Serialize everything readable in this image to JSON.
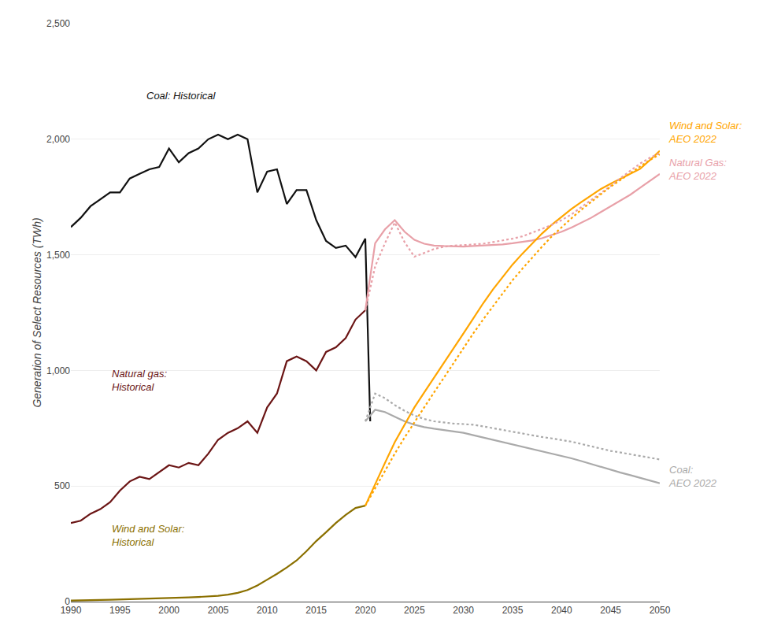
{
  "chart_data": {
    "type": "line",
    "y_label": "Generation of Select Resources (TWh)",
    "xlim": [
      1990,
      2050
    ],
    "ylim": [
      0,
      2500
    ],
    "xticks": [
      1990,
      1995,
      2000,
      2005,
      2010,
      2015,
      2020,
      2025,
      2030,
      2035,
      2040,
      2045,
      2050
    ],
    "yticks": [
      0,
      500,
      {
        "value": 1000,
        "label": "1,000"
      },
      {
        "value": 1500,
        "label": "1,500"
      },
      {
        "value": 2000,
        "label": "2,000"
      },
      {
        "value": 2500,
        "label": "2,500"
      }
    ],
    "grid": "y",
    "series": [
      {
        "color": "#111111",
        "line_style": "solid",
        "x": [
          1990,
          1991,
          1992,
          1993,
          1994,
          1995,
          1996,
          1997,
          1998,
          1999,
          2000,
          2001,
          2002,
          2003,
          2004,
          2005,
          2006,
          2007,
          2008,
          2009,
          2010,
          2011,
          2012,
          2013,
          2014,
          2015,
          2016,
          2017,
          2018,
          2019,
          2020,
          2020.5
        ],
        "values": [
          1620,
          1660,
          1710,
          1740,
          1770,
          1770,
          1830,
          1850,
          1870,
          1880,
          1960,
          1900,
          1940,
          1960,
          2000,
          2020,
          2000,
          2020,
          2000,
          1770,
          1860,
          1870,
          1720,
          1780,
          1780,
          1650,
          1560,
          1530,
          1540,
          1490,
          1570,
          780
        ]
      },
      {
        "color": "#6b1515",
        "line_style": "solid",
        "x": [
          1990,
          1991,
          1992,
          1993,
          1994,
          1995,
          1996,
          1997,
          1998,
          1999,
          2000,
          2001,
          2002,
          2003,
          2004,
          2005,
          2006,
          2007,
          2008,
          2009,
          2010,
          2011,
          2012,
          2013,
          2014,
          2015,
          2016,
          2017,
          2018,
          2019,
          2020
        ],
        "values": [
          340,
          350,
          380,
          400,
          430,
          480,
          520,
          540,
          530,
          560,
          590,
          580,
          600,
          590,
          640,
          700,
          730,
          750,
          780,
          730,
          840,
          900,
          1040,
          1060,
          1040,
          1000,
          1080,
          1100,
          1140,
          1220,
          1260
        ]
      },
      {
        "color": "#8b7000",
        "line_style": "solid",
        "x": [
          1990,
          1991,
          1992,
          1993,
          1994,
          1995,
          1996,
          1997,
          1998,
          1999,
          2000,
          2001,
          2002,
          2003,
          2004,
          2005,
          2006,
          2007,
          2008,
          2009,
          2010,
          2011,
          2012,
          2013,
          2014,
          2015,
          2016,
          2017,
          2018,
          2019,
          2020
        ],
        "values": [
          5,
          5,
          6,
          7,
          8,
          9,
          10,
          11,
          12,
          14,
          16,
          17,
          18,
          20,
          22,
          25,
          30,
          38,
          50,
          70,
          95,
          120,
          148,
          178,
          218,
          262,
          300,
          340,
          375,
          405,
          415
        ]
      },
      {
        "color": "#aaaaaa",
        "line_style": "solid",
        "x": [
          2020,
          2021,
          2022,
          2023,
          2024,
          2025,
          2026,
          2027,
          2028,
          2029,
          2030,
          2031,
          2032,
          2033,
          2034,
          2035,
          2036,
          2037,
          2038,
          2039,
          2040,
          2041,
          2042,
          2043,
          2044,
          2045,
          2046,
          2047,
          2048,
          2049,
          2050
        ],
        "values": [
          780,
          830,
          820,
          800,
          780,
          765,
          755,
          748,
          742,
          736,
          730,
          720,
          710,
          700,
          690,
          682,
          672,
          662,
          652,
          642,
          632,
          620,
          608,
          595,
          582,
          570,
          558,
          547,
          536,
          524,
          512
        ]
      },
      {
        "color": "#e8a0a8",
        "line_style": "solid",
        "x": [
          2020,
          2021,
          2022,
          2023,
          2024,
          2025,
          2026,
          2027,
          2028,
          2029,
          2030,
          2031,
          2032,
          2033,
          2034,
          2035,
          2036,
          2037,
          2038,
          2039,
          2040,
          2041,
          2042,
          2043,
          2044,
          2045,
          2046,
          2047,
          2048,
          2049,
          2050
        ],
        "values": [
          1260,
          1550,
          1610,
          1650,
          1600,
          1565,
          1548,
          1540,
          1538,
          1536,
          1536,
          1538,
          1540,
          1542,
          1545,
          1550,
          1555,
          1562,
          1572,
          1585,
          1600,
          1618,
          1640,
          1660,
          1685,
          1710,
          1735,
          1760,
          1790,
          1820,
          1850
        ]
      },
      {
        "color": "#ffa500",
        "line_style": "solid",
        "x": [
          2020,
          2021,
          2022,
          2023,
          2024,
          2025,
          2026,
          2027,
          2028,
          2029,
          2030,
          2031,
          2032,
          2033,
          2034,
          2035,
          2036,
          2037,
          2038,
          2039,
          2040,
          2041,
          2042,
          2043,
          2044,
          2045,
          2046,
          2047,
          2048,
          2049,
          2050
        ],
        "values": [
          415,
          510,
          600,
          690,
          765,
          840,
          905,
          968,
          1030,
          1095,
          1160,
          1225,
          1290,
          1350,
          1405,
          1458,
          1505,
          1550,
          1592,
          1630,
          1665,
          1698,
          1728,
          1758,
          1785,
          1808,
          1830,
          1852,
          1872,
          1910,
          1950
        ]
      },
      {
        "color": "#aaaaaa",
        "line_style": "dotted",
        "x": [
          2020,
          2021,
          2022,
          2023,
          2024,
          2025,
          2026,
          2027,
          2028,
          2029,
          2030,
          2031,
          2032,
          2033,
          2034,
          2035,
          2036,
          2037,
          2038,
          2039,
          2040,
          2041,
          2042,
          2043,
          2044,
          2045,
          2046,
          2047,
          2048,
          2049,
          2050
        ],
        "values": [
          780,
          900,
          880,
          850,
          825,
          805,
          790,
          780,
          775,
          770,
          768,
          765,
          758,
          750,
          742,
          735,
          728,
          720,
          712,
          706,
          700,
          692,
          682,
          672,
          662,
          652,
          645,
          638,
          630,
          622,
          615
        ]
      },
      {
        "color": "#e8a0a8",
        "line_style": "dotted",
        "x": [
          2020,
          2021,
          2022,
          2023,
          2024,
          2025,
          2026,
          2027,
          2028,
          2029,
          2030,
          2031,
          2032,
          2033,
          2034,
          2035,
          2036,
          2037,
          2038,
          2039,
          2040,
          2041,
          2042,
          2043,
          2044,
          2045,
          2046,
          2047,
          2048,
          2049,
          2050
        ],
        "values": [
          1260,
          1450,
          1550,
          1640,
          1555,
          1492,
          1508,
          1525,
          1535,
          1540,
          1542,
          1545,
          1548,
          1555,
          1562,
          1570,
          1580,
          1595,
          1612,
          1630,
          1650,
          1675,
          1705,
          1735,
          1765,
          1798,
          1832,
          1865,
          1895,
          1920,
          1940
        ]
      },
      {
        "color": "#ffa500",
        "line_style": "dotted",
        "x": [
          2020,
          2021,
          2022,
          2023,
          2024,
          2025,
          2026,
          2027,
          2028,
          2029,
          2030,
          2031,
          2032,
          2033,
          2034,
          2035,
          2036,
          2037,
          2038,
          2039,
          2040,
          2041,
          2042,
          2043,
          2044,
          2045,
          2046,
          2047,
          2048,
          2049,
          2050
        ],
        "values": [
          415,
          488,
          565,
          640,
          710,
          775,
          842,
          905,
          968,
          1032,
          1098,
          1160,
          1220,
          1278,
          1335,
          1390,
          1440,
          1488,
          1535,
          1580,
          1620,
          1658,
          1695,
          1730,
          1762,
          1795,
          1825,
          1855,
          1882,
          1910,
          1935
        ]
      }
    ],
    "annotations": [
      {
        "text": "Coal: Historical",
        "color": "#111111"
      },
      {
        "text": "Natural gas:\nHistorical",
        "color": "#6b1515"
      },
      {
        "text": "Wind and Solar:\nHistorical",
        "color": "#8b7000"
      },
      {
        "text": "Wind and Solar:\nAEO 2022",
        "color": "#ffa500"
      },
      {
        "text": "Natural Gas:\nAEO 2022",
        "color": "#e8a0a8"
      },
      {
        "text": "Coal:\nAEO 2022",
        "color": "#aaaaaa"
      }
    ]
  }
}
